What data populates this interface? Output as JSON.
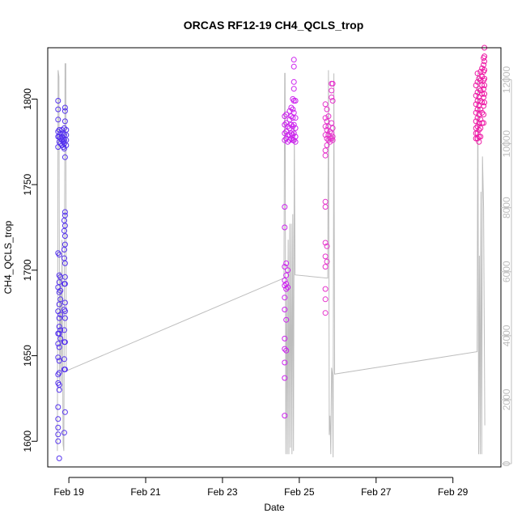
{
  "chart_data": {
    "type": "scatter",
    "title": "ORCAS RF12-19 CH4_QCLS_trop",
    "xlabel": "Date",
    "ylabel": "CH4_QCLS_trop",
    "x_ticks": [
      "Feb 19",
      "Feb 21",
      "Feb 23",
      "Feb 25",
      "Feb 27",
      "Feb 29"
    ],
    "x_tick_days": [
      19,
      21,
      23,
      25,
      27,
      29
    ],
    "xlim": [
      18.45,
      30.25
    ],
    "ylim": [
      1585,
      1830
    ],
    "y_ticks": [
      1600,
      1650,
      1700,
      1750,
      1800
    ],
    "y2lim": [
      -100,
      13000
    ],
    "y2_ticks": [
      0,
      2000,
      4000,
      6000,
      8000,
      10000,
      12000
    ],
    "colors": {
      "flight_1": "#5533ee",
      "flight_2": "#cc22ee",
      "flight_3": "#e633cc",
      "flight_4": "#ee1ba6",
      "altitude": "#bdbdbd"
    },
    "series": [
      {
        "color": "#5533ee",
        "points": [
          [
            18.72,
            1799
          ],
          [
            18.72,
            1794
          ],
          [
            18.72,
            1788
          ],
          [
            18.72,
            1781
          ],
          [
            18.72,
            1778
          ],
          [
            18.72,
            1772
          ],
          [
            18.72,
            1710
          ],
          [
            18.72,
            1690
          ],
          [
            18.72,
            1676
          ],
          [
            18.72,
            1663
          ],
          [
            18.72,
            1657
          ],
          [
            18.72,
            1649
          ],
          [
            18.72,
            1639
          ],
          [
            18.72,
            1634
          ],
          [
            18.72,
            1620
          ],
          [
            18.72,
            1613
          ],
          [
            18.72,
            1608
          ],
          [
            18.72,
            1604
          ],
          [
            18.72,
            1600
          ],
          [
            18.75,
            1782
          ],
          [
            18.75,
            1778
          ],
          [
            18.75,
            1775
          ],
          [
            18.75,
            1709
          ],
          [
            18.75,
            1697
          ],
          [
            18.75,
            1693
          ],
          [
            18.75,
            1687
          ],
          [
            18.75,
            1680
          ],
          [
            18.75,
            1672
          ],
          [
            18.75,
            1667
          ],
          [
            18.75,
            1663
          ],
          [
            18.75,
            1655
          ],
          [
            18.75,
            1647
          ],
          [
            18.75,
            1640
          ],
          [
            18.75,
            1633
          ],
          [
            18.75,
            1630
          ],
          [
            18.75,
            1590
          ],
          [
            18.78,
            1780
          ],
          [
            18.78,
            1777
          ],
          [
            18.78,
            1774
          ],
          [
            18.78,
            1696
          ],
          [
            18.78,
            1688
          ],
          [
            18.78,
            1683
          ],
          [
            18.78,
            1674
          ],
          [
            18.78,
            1665
          ],
          [
            18.78,
            1660
          ],
          [
            18.82,
            1782
          ],
          [
            18.82,
            1778
          ],
          [
            18.82,
            1776
          ],
          [
            18.82,
            1773
          ],
          [
            18.86,
            1780
          ],
          [
            18.86,
            1777
          ],
          [
            18.86,
            1775
          ],
          [
            18.86,
            1772
          ],
          [
            18.88,
            1783
          ],
          [
            18.88,
            1779
          ],
          [
            18.88,
            1776
          ],
          [
            18.88,
            1774
          ],
          [
            18.88,
            1771
          ],
          [
            18.88,
            1729
          ],
          [
            18.88,
            1723
          ],
          [
            18.88,
            1712
          ],
          [
            18.88,
            1707
          ],
          [
            18.88,
            1692
          ],
          [
            18.88,
            1677
          ],
          [
            18.88,
            1665
          ],
          [
            18.88,
            1658
          ],
          [
            18.88,
            1648
          ],
          [
            18.88,
            1642
          ],
          [
            18.88,
            1605
          ],
          [
            18.9,
            1795
          ],
          [
            18.9,
            1793
          ],
          [
            18.9,
            1787
          ],
          [
            18.9,
            1766
          ],
          [
            18.9,
            1734
          ],
          [
            18.9,
            1732
          ],
          [
            18.9,
            1726
          ],
          [
            18.9,
            1720
          ],
          [
            18.9,
            1715
          ],
          [
            18.9,
            1704
          ],
          [
            18.9,
            1696
          ],
          [
            18.9,
            1692
          ],
          [
            18.9,
            1681
          ],
          [
            18.9,
            1676
          ],
          [
            18.9,
            1672
          ],
          [
            18.9,
            1658
          ],
          [
            18.9,
            1642
          ],
          [
            18.9,
            1617
          ],
          [
            18.93,
            1782
          ],
          [
            18.93,
            1779
          ],
          [
            18.93,
            1776
          ],
          [
            18.93,
            1773
          ]
        ]
      },
      {
        "color": "#cc22ee",
        "points": [
          [
            24.62,
            1790
          ],
          [
            24.62,
            1785
          ],
          [
            24.62,
            1780
          ],
          [
            24.62,
            1776
          ],
          [
            24.62,
            1737
          ],
          [
            24.62,
            1725
          ],
          [
            24.62,
            1702
          ],
          [
            24.62,
            1694
          ],
          [
            24.62,
            1691
          ],
          [
            24.62,
            1684
          ],
          [
            24.62,
            1677
          ],
          [
            24.62,
            1660
          ],
          [
            24.62,
            1654
          ],
          [
            24.62,
            1646
          ],
          [
            24.62,
            1637
          ],
          [
            24.62,
            1615
          ],
          [
            24.66,
            1791
          ],
          [
            24.66,
            1786
          ],
          [
            24.66,
            1781
          ],
          [
            24.66,
            1777
          ],
          [
            24.66,
            1704
          ],
          [
            24.66,
            1697
          ],
          [
            24.66,
            1692
          ],
          [
            24.66,
            1689
          ],
          [
            24.66,
            1671
          ],
          [
            24.66,
            1653
          ],
          [
            24.7,
            1784
          ],
          [
            24.7,
            1779
          ],
          [
            24.7,
            1775
          ],
          [
            24.7,
            1700
          ],
          [
            24.7,
            1690
          ],
          [
            24.75,
            1793
          ],
          [
            24.75,
            1788
          ],
          [
            24.75,
            1783
          ],
          [
            24.75,
            1779
          ],
          [
            24.75,
            1776
          ],
          [
            24.79,
            1795
          ],
          [
            24.79,
            1790
          ],
          [
            24.79,
            1785
          ],
          [
            24.79,
            1780
          ],
          [
            24.79,
            1777
          ],
          [
            24.83,
            1800
          ],
          [
            24.83,
            1794
          ],
          [
            24.83,
            1789
          ],
          [
            24.83,
            1784
          ],
          [
            24.83,
            1779
          ],
          [
            24.83,
            1776
          ],
          [
            24.86,
            1823
          ],
          [
            24.86,
            1819
          ],
          [
            24.86,
            1810
          ],
          [
            24.86,
            1806
          ],
          [
            24.86,
            1799
          ],
          [
            24.86,
            1792
          ],
          [
            24.86,
            1785
          ],
          [
            24.86,
            1780
          ],
          [
            24.86,
            1776
          ],
          [
            24.9,
            1799
          ],
          [
            24.9,
            1789
          ],
          [
            24.9,
            1783
          ],
          [
            24.9,
            1778
          ],
          [
            24.9,
            1775
          ]
        ]
      },
      {
        "color": "#e633cc",
        "points": [
          [
            25.68,
            1797
          ],
          [
            25.68,
            1789
          ],
          [
            25.68,
            1784
          ],
          [
            25.68,
            1779
          ],
          [
            25.68,
            1770
          ],
          [
            25.68,
            1767
          ],
          [
            25.68,
            1740
          ],
          [
            25.68,
            1737
          ],
          [
            25.68,
            1716
          ],
          [
            25.68,
            1708
          ],
          [
            25.68,
            1702
          ],
          [
            25.68,
            1689
          ],
          [
            25.68,
            1683
          ],
          [
            25.68,
            1675
          ],
          [
            25.72,
            1794
          ],
          [
            25.72,
            1787
          ],
          [
            25.72,
            1782
          ],
          [
            25.72,
            1777
          ],
          [
            25.72,
            1773
          ],
          [
            25.72,
            1714
          ],
          [
            25.72,
            1705
          ],
          [
            25.76,
            1790
          ],
          [
            25.76,
            1784
          ],
          [
            25.76,
            1779
          ],
          [
            25.76,
            1776
          ],
          [
            25.8,
            1781
          ],
          [
            25.8,
            1777
          ],
          [
            25.8,
            1775
          ],
          [
            25.84,
            1809
          ],
          [
            25.84,
            1805
          ],
          [
            25.84,
            1801
          ],
          [
            25.84,
            1786
          ],
          [
            25.84,
            1780
          ],
          [
            25.84,
            1777
          ],
          [
            25.87,
            1809
          ],
          [
            25.87,
            1799
          ],
          [
            25.87,
            1783
          ],
          [
            25.87,
            1778
          ],
          [
            25.87,
            1776
          ]
        ]
      },
      {
        "color": "#ee1ba6",
        "points": [
          [
            29.6,
            1808
          ],
          [
            29.6,
            1802
          ],
          [
            29.6,
            1797
          ],
          [
            29.6,
            1792
          ],
          [
            29.6,
            1787
          ],
          [
            29.6,
            1783
          ],
          [
            29.6,
            1780
          ],
          [
            29.6,
            1777
          ],
          [
            29.64,
            1815
          ],
          [
            29.64,
            1810
          ],
          [
            29.64,
            1804
          ],
          [
            29.64,
            1799
          ],
          [
            29.64,
            1794
          ],
          [
            29.64,
            1789
          ],
          [
            29.64,
            1784
          ],
          [
            29.64,
            1780
          ],
          [
            29.64,
            1777
          ],
          [
            29.68,
            1812
          ],
          [
            29.68,
            1806
          ],
          [
            29.68,
            1801
          ],
          [
            29.68,
            1796
          ],
          [
            29.68,
            1791
          ],
          [
            29.68,
            1786
          ],
          [
            29.68,
            1782
          ],
          [
            29.68,
            1778
          ],
          [
            29.68,
            1775
          ],
          [
            29.72,
            1816
          ],
          [
            29.72,
            1811
          ],
          [
            29.72,
            1805
          ],
          [
            29.72,
            1799
          ],
          [
            29.72,
            1794
          ],
          [
            29.72,
            1788
          ],
          [
            29.72,
            1783
          ],
          [
            29.72,
            1778
          ],
          [
            29.76,
            1818
          ],
          [
            29.76,
            1813
          ],
          [
            29.76,
            1808
          ],
          [
            29.76,
            1803
          ],
          [
            29.76,
            1798
          ],
          [
            29.76,
            1792
          ],
          [
            29.76,
            1786
          ],
          [
            29.8,
            1824
          ],
          [
            29.8,
            1820
          ],
          [
            29.8,
            1816
          ],
          [
            29.8,
            1811
          ],
          [
            29.8,
            1806
          ],
          [
            29.8,
            1801
          ],
          [
            29.8,
            1796
          ],
          [
            29.8,
            1791
          ],
          [
            29.8,
            1786
          ],
          [
            29.82,
            1830
          ],
          [
            29.82,
            1825
          ],
          [
            29.82,
            1822
          ],
          [
            29.82,
            1817
          ],
          [
            29.82,
            1812
          ],
          [
            29.82,
            1808
          ],
          [
            29.82,
            1803
          ],
          [
            29.82,
            1798
          ]
        ]
      }
    ],
    "altitude_line": [
      [
        18.7,
        400
      ],
      [
        18.72,
        12300
      ],
      [
        18.74,
        12100
      ],
      [
        18.76,
        2600
      ],
      [
        18.78,
        6000
      ],
      [
        18.8,
        2300
      ],
      [
        18.82,
        7000
      ],
      [
        18.85,
        600
      ],
      [
        18.87,
        400
      ],
      [
        18.9,
        12500
      ],
      [
        18.92,
        12500
      ],
      [
        18.93,
        2900
      ],
      [
        24.6,
        5800
      ],
      [
        24.62,
        12200
      ],
      [
        24.63,
        12200
      ],
      [
        24.65,
        300
      ],
      [
        24.67,
        5500
      ],
      [
        24.69,
        300
      ],
      [
        24.71,
        7000
      ],
      [
        24.73,
        300
      ],
      [
        24.75,
        7500
      ],
      [
        24.77,
        500
      ],
      [
        24.79,
        7500
      ],
      [
        24.81,
        300
      ],
      [
        24.83,
        7800
      ],
      [
        24.85,
        400
      ],
      [
        24.87,
        10500
      ],
      [
        24.89,
        5900
      ],
      [
        25.74,
        5800
      ],
      [
        25.76,
        12300
      ],
      [
        25.78,
        900
      ],
      [
        25.8,
        1500
      ],
      [
        25.82,
        300
      ],
      [
        25.84,
        3000
      ],
      [
        25.86,
        2800
      ],
      [
        25.88,
        200
      ],
      [
        25.9,
        12200
      ],
      [
        25.92,
        2800
      ],
      [
        29.63,
        3500
      ],
      [
        29.65,
        12200
      ],
      [
        29.67,
        300
      ],
      [
        29.69,
        6500
      ],
      [
        29.71,
        300
      ],
      [
        29.73,
        8500
      ],
      [
        29.75,
        300
      ],
      [
        29.77,
        9600
      ],
      [
        29.8,
        8000
      ],
      [
        29.83,
        1200
      ]
    ]
  }
}
